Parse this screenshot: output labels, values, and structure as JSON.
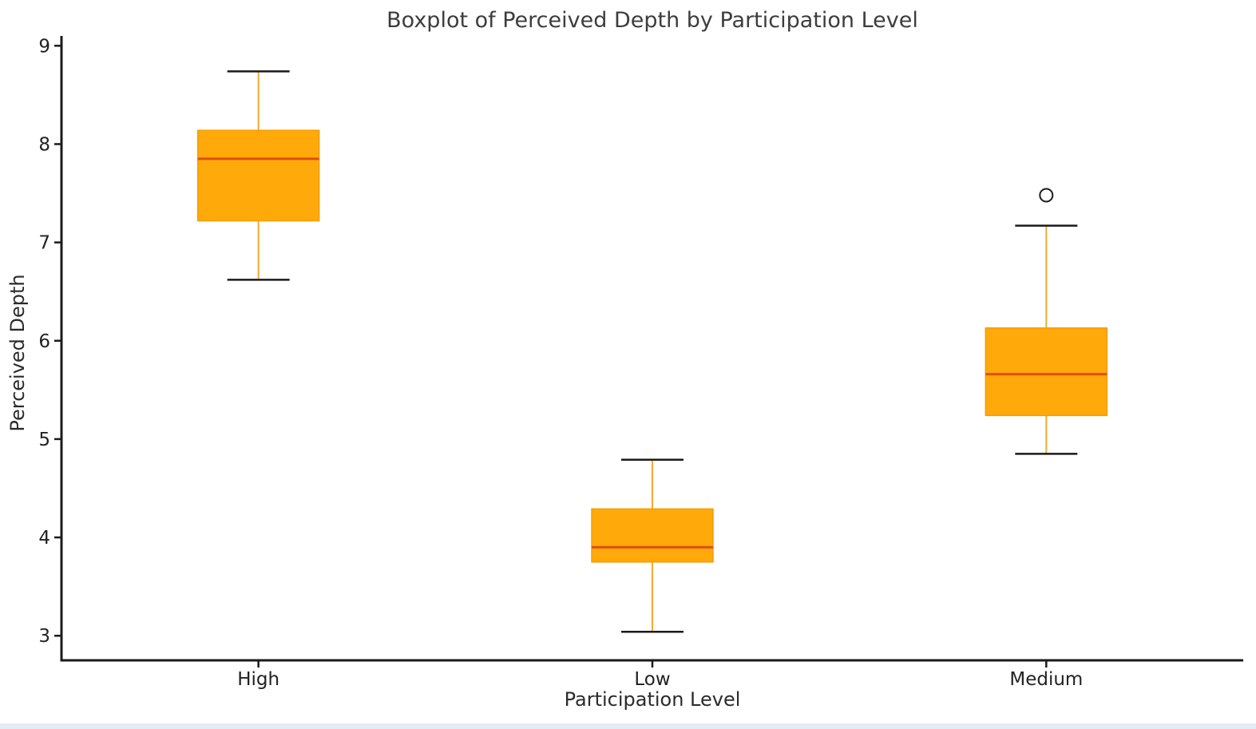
{
  "title": "Boxplot of Perceived Depth by Participation Level",
  "x_axis": {
    "label": "Participation Level"
  },
  "y_axis": {
    "label": "Perceived Depth",
    "ticks": [
      3,
      4,
      5,
      6,
      7,
      8,
      9
    ]
  },
  "colors": {
    "box_fill": "#ffa90a",
    "box_edge": "#f59d00",
    "median": "#e04e11",
    "whisker": "#f2ab2e",
    "cap": "#1a1a1a",
    "spine": "#1a1a1a",
    "tick_text": "#222222",
    "title_text": "#3d3d3d",
    "outlier_stroke": "#1a1a1a",
    "window_edge": "#e3ecf5"
  },
  "chart_data": {
    "type": "boxplot",
    "title": "Boxplot of Perceived Depth by Participation Level",
    "xlabel": "Participation Level",
    "ylabel": "Perceived Depth",
    "categories": [
      "High",
      "Low",
      "Medium"
    ],
    "ylim": [
      2.75,
      9.1
    ],
    "yticks": [
      3,
      4,
      5,
      6,
      7,
      8,
      9
    ],
    "grid": false,
    "legend": null,
    "series": [
      {
        "name": "High",
        "whisker_low": 6.62,
        "q1": 7.22,
        "median": 7.85,
        "q3": 8.14,
        "whisker_high": 8.74,
        "outliers": []
      },
      {
        "name": "Low",
        "whisker_low": 3.04,
        "q1": 3.75,
        "median": 3.9,
        "q3": 4.29,
        "whisker_high": 4.79,
        "outliers": []
      },
      {
        "name": "Medium",
        "whisker_low": 4.85,
        "q1": 5.24,
        "median": 5.66,
        "q3": 6.13,
        "whisker_high": 7.17,
        "outliers": [
          7.48
        ]
      }
    ]
  }
}
